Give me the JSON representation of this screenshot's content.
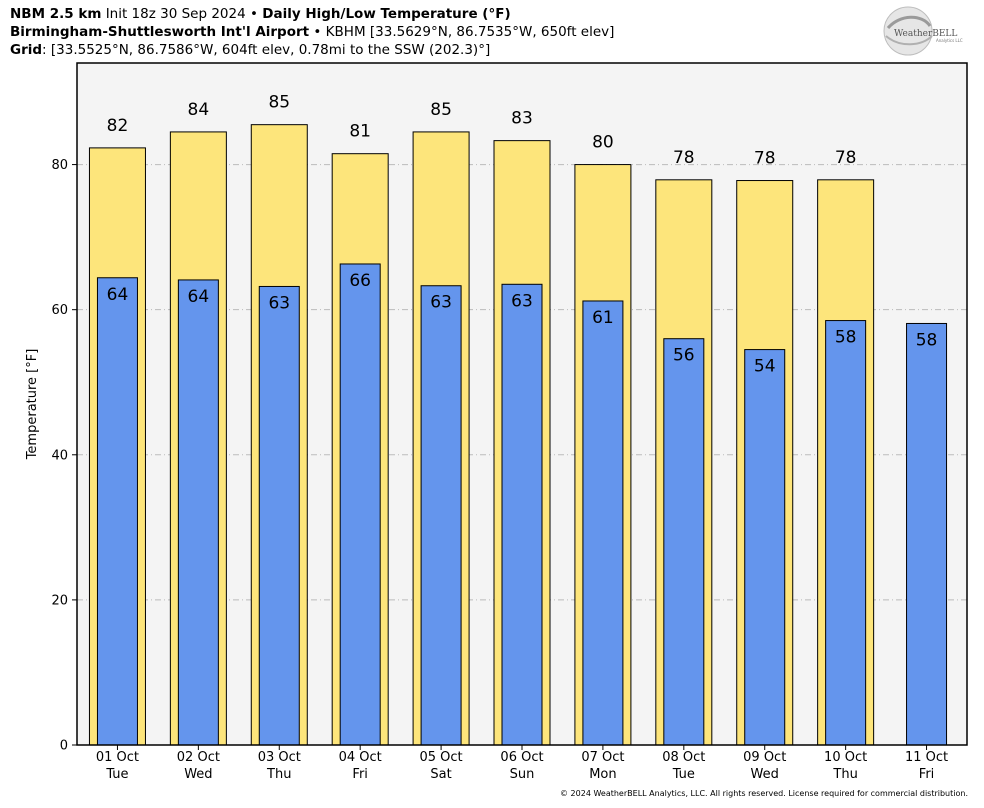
{
  "header": {
    "model": "NBM 2.5 km",
    "init": "Init 18z 30 Sep 2024",
    "product": "Daily High/Low Temperature (°F)",
    "station_name": "Birmingham-Shuttlesworth Int'l Airport",
    "station_info": "KBHM [33.5629°N, 86.7535°W, 650ft elev]",
    "grid_label": "Grid",
    "grid_info": ": [33.5525°N, 86.7586°W, 604ft elev, 0.78mi to the SSW (202.3)°]",
    "separator": "•"
  },
  "logo": {
    "text": "WeatherBELL",
    "subtext": "Analytics LLC"
  },
  "footer": {
    "copyright": "© 2024 WeatherBELL Analytics, LLC. All rights reserved. License required for commercial distribution."
  },
  "colors": {
    "high": "#fde57b",
    "low": "#6495ed",
    "plot_bg": "#f4f4f4",
    "grid": "#bbbbbb"
  },
  "chart_data": {
    "type": "bar",
    "ylabel": "Temperature [°F]",
    "ylim": [
      0,
      94
    ],
    "yticks": [
      0,
      20,
      40,
      60,
      80
    ],
    "grid": true,
    "categories": [
      {
        "date": "01 Oct",
        "day": "Tue"
      },
      {
        "date": "02 Oct",
        "day": "Wed"
      },
      {
        "date": "03 Oct",
        "day": "Thu"
      },
      {
        "date": "04 Oct",
        "day": "Fri"
      },
      {
        "date": "05 Oct",
        "day": "Sat"
      },
      {
        "date": "06 Oct",
        "day": "Sun"
      },
      {
        "date": "07 Oct",
        "day": "Mon"
      },
      {
        "date": "08 Oct",
        "day": "Tue"
      },
      {
        "date": "09 Oct",
        "day": "Wed"
      },
      {
        "date": "10 Oct",
        "day": "Thu"
      },
      {
        "date": "11 Oct",
        "day": "Fri"
      }
    ],
    "series": [
      {
        "values": [
          82.3,
          84.5,
          85.5,
          81.5,
          84.5,
          83.3,
          80.0,
          77.9,
          77.8,
          77.9,
          null
        ],
        "labels": [
          "82",
          "84",
          "85",
          "81",
          "85",
          "83",
          "80",
          "78",
          "78",
          "78",
          ""
        ]
      },
      {
        "values": [
          64.4,
          64.1,
          63.2,
          66.3,
          63.3,
          63.5,
          61.2,
          56.0,
          54.5,
          58.5,
          58.1
        ],
        "labels": [
          "64",
          "64",
          "63",
          "66",
          "63",
          "63",
          "61",
          "56",
          "54",
          "58",
          "58"
        ]
      }
    ]
  }
}
